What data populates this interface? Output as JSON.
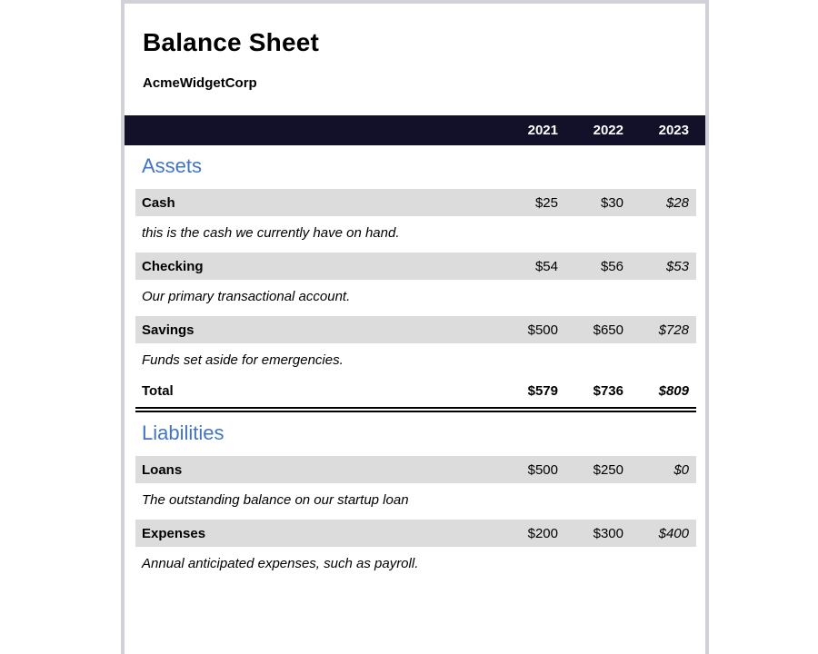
{
  "header": {
    "title": "Balance Sheet",
    "company": "AcmeWidgetCorp"
  },
  "table": {
    "years": [
      "2021",
      "2022",
      "2023"
    ],
    "sections": [
      {
        "heading": "Assets",
        "rows": [
          {
            "label": "Cash",
            "values": [
              "$25",
              "$30",
              "$28"
            ],
            "description": "this is the cash we currently have on hand."
          },
          {
            "label": "Checking",
            "values": [
              "$54",
              "$56",
              "$53"
            ],
            "description": "Our primary transactional account."
          },
          {
            "label": "Savings",
            "values": [
              "$500",
              "$650",
              "$728"
            ],
            "description": "Funds set aside for emergencies."
          }
        ],
        "total": {
          "label": "Total",
          "values": [
            "$579",
            "$736",
            "$809"
          ]
        }
      },
      {
        "heading": "Liabilities",
        "rows": [
          {
            "label": "Loans",
            "values": [
              "$500",
              "$250",
              "$0"
            ],
            "description": "The outstanding balance on our startup loan"
          },
          {
            "label": "Expenses",
            "values": [
              "$200",
              "$300",
              "$400"
            ],
            "description": "Annual anticipated expenses, such as payroll."
          }
        ]
      }
    ]
  },
  "colors": {
    "header_bg": "#131129",
    "row_bg": "#dcdcdc",
    "accent": "#4274c4",
    "page_border": "#d2d1d7"
  }
}
